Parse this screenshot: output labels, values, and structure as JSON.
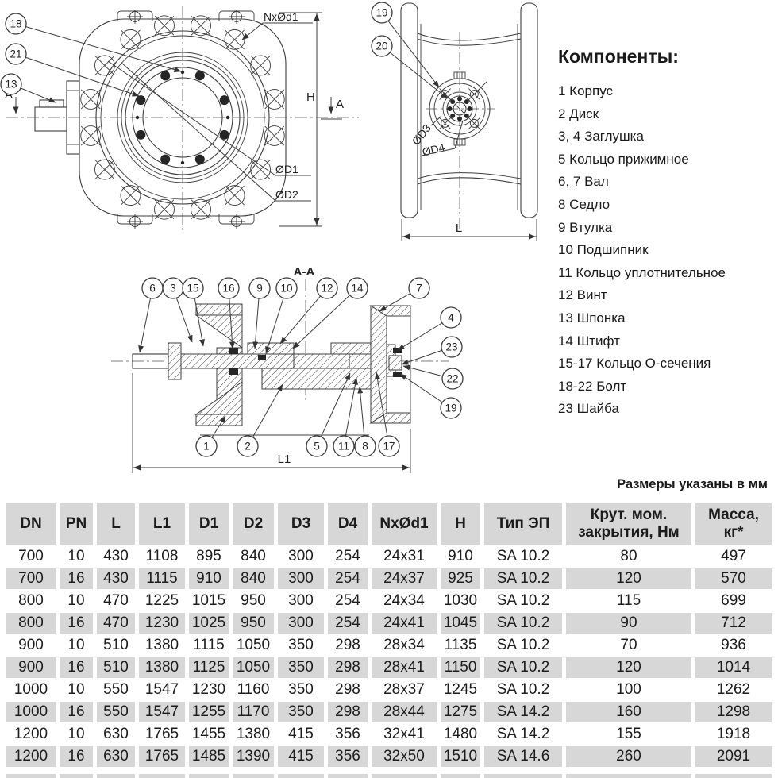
{
  "meta": {
    "units_note": "Размеры указаны в мм"
  },
  "components": {
    "title": "Компоненты:",
    "items": [
      "1 Корпус",
      "2 Диск",
      "3, 4 Заглушка",
      "5 Кольцо прижимное",
      "6, 7 Вал",
      "8 Седло",
      "9 Втулка",
      "10 Подшипник",
      "11 Кольцо уплотнительное",
      "12 Винт",
      "13 Шпонка",
      "14 Штифт",
      "15-17 Кольцо О-сечения",
      "18-22 Болт",
      "23 Шайба"
    ]
  },
  "drawing": {
    "front_view": {
      "callouts": [
        "18",
        "21",
        "13"
      ],
      "labels": {
        "bolt_pattern": "NxØd1",
        "height": "H",
        "d1": "ØD1",
        "d2": "ØD2",
        "section_marker": "A"
      }
    },
    "side_view": {
      "callouts": [
        "19",
        "20"
      ],
      "labels": {
        "d3": "ØD3",
        "d4": "ØD4",
        "length": "L"
      }
    },
    "section_view": {
      "callouts_top": [
        "6",
        "3",
        "15",
        "16",
        "9",
        "10",
        "12",
        "14",
        "7"
      ],
      "callouts_right": [
        "4",
        "23",
        "22",
        "19"
      ],
      "callouts_bottom": [
        "1",
        "2",
        "5",
        "11",
        "8",
        "17"
      ],
      "labels": {
        "title": "A-A",
        "length": "L1"
      }
    }
  },
  "table": {
    "headers": [
      "DN",
      "PN",
      "L",
      "L1",
      "D1",
      "D2",
      "D3",
      "D4",
      "NxØd1",
      "H",
      "Тип ЭП",
      "Крут. мом.\nзакрытия, Нм",
      "Масса,\nкг*"
    ],
    "rows": [
      [
        "700",
        "10",
        "430",
        "1108",
        "895",
        "840",
        "300",
        "254",
        "24x31",
        "910",
        "SA 10.2",
        "80",
        "497"
      ],
      [
        "700",
        "16",
        "430",
        "1115",
        "910",
        "840",
        "300",
        "254",
        "24x37",
        "925",
        "SA 10.2",
        "120",
        "570"
      ],
      [
        "800",
        "10",
        "470",
        "1225",
        "1015",
        "950",
        "300",
        "254",
        "24x34",
        "1030",
        "SA 10.2",
        "115",
        "699"
      ],
      [
        "800",
        "16",
        "470",
        "1230",
        "1025",
        "950",
        "300",
        "254",
        "24x41",
        "1045",
        "SA 10.2",
        "90",
        "712"
      ],
      [
        "900",
        "10",
        "510",
        "1380",
        "1115",
        "1050",
        "350",
        "298",
        "28x34",
        "1135",
        "SA 10.2",
        "70",
        "936"
      ],
      [
        "900",
        "16",
        "510",
        "1380",
        "1125",
        "1050",
        "350",
        "298",
        "28x41",
        "1150",
        "SA 10.2",
        "120",
        "1014"
      ],
      [
        "1000",
        "10",
        "550",
        "1547",
        "1230",
        "1160",
        "350",
        "298",
        "28x37",
        "1245",
        "SA 10.2",
        "100",
        "1262"
      ],
      [
        "1000",
        "16",
        "550",
        "1547",
        "1255",
        "1170",
        "350",
        "298",
        "28x44",
        "1275",
        "SA 14.2",
        "160",
        "1298"
      ],
      [
        "1200",
        "10",
        "630",
        "1765",
        "1455",
        "1380",
        "415",
        "356",
        "32x41",
        "1480",
        "SA 14.2",
        "155",
        "1918"
      ],
      [
        "1200",
        "16",
        "630",
        "1765",
        "1485",
        "1390",
        "415",
        "356",
        "32x50",
        "1510",
        "SA 14.6",
        "260",
        "2091"
      ]
    ]
  }
}
